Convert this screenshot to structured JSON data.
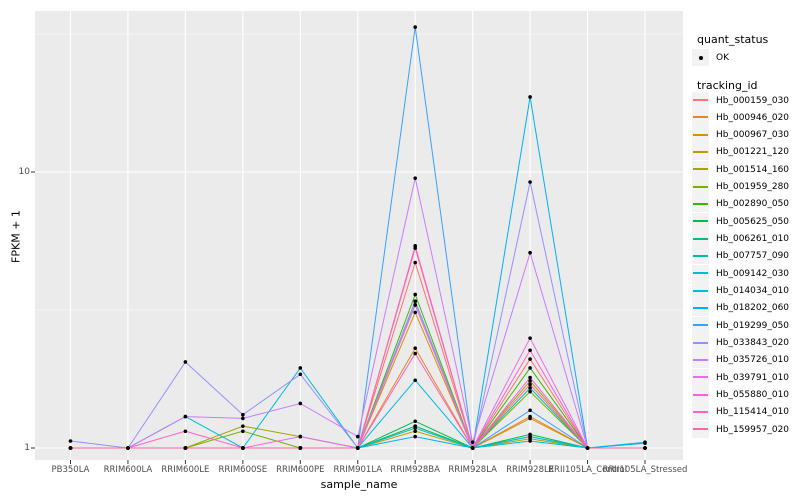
{
  "chart_data": {
    "type": "line",
    "xlabel": "sample_name",
    "ylabel": "FPKM + 1",
    "y_scale": "log10",
    "y_ticks": [
      1,
      10
    ],
    "y_minor": [
      3.162,
      31.62
    ],
    "ylim": [
      0.9,
      38
    ],
    "grid": true,
    "panel_bg": "#EBEBEB",
    "grid_color": "#FFFFFF",
    "point_color": "#000000",
    "categories": [
      "PB350LA",
      "RRIM600LA",
      "RRIM600LE",
      "RRIM600SE",
      "RRIM600PE",
      "RRIM901LA",
      "RRIM928BA",
      "RRIM928LA",
      "RRIM928LE",
      "RRII105LA_Control",
      "RRII105LA_Stressed"
    ],
    "series": [
      {
        "name": "Hb_000159_030",
        "color": "#F8766D",
        "values": [
          1,
          1,
          1,
          1,
          1,
          1,
          4.7,
          1,
          2.1,
          1,
          1
        ]
      },
      {
        "name": "Hb_000946_020",
        "color": "#E88526",
        "values": [
          1,
          1,
          1,
          1,
          1,
          1,
          2.3,
          1,
          1.3,
          1,
          1
        ]
      },
      {
        "name": "Hb_000967_030",
        "color": "#D89000",
        "values": [
          1,
          1,
          1,
          1,
          1,
          1,
          3.1,
          1,
          1.28,
          1,
          1
        ]
      },
      {
        "name": "Hb_001221_120",
        "color": "#C09B00",
        "values": [
          1,
          1,
          1,
          1,
          1,
          1,
          1.15,
          1,
          1.08,
          1,
          1
        ]
      },
      {
        "name": "Hb_001514_160",
        "color": "#A3A500",
        "values": [
          1,
          1,
          1,
          1.2,
          1.1,
          1,
          3.3,
          1,
          1.75,
          1,
          1
        ]
      },
      {
        "name": "Hb_001959_280",
        "color": "#7CAE00",
        "values": [
          1,
          1,
          1,
          1.15,
          1,
          1,
          1.2,
          1,
          1.6,
          1,
          1
        ]
      },
      {
        "name": "Hb_002890_050",
        "color": "#39B600",
        "values": [
          1,
          1,
          1,
          1,
          1,
          1,
          3.6,
          1,
          1.95,
          1,
          1
        ]
      },
      {
        "name": "Hb_005625_050",
        "color": "#00BB4E",
        "values": [
          1,
          1,
          1,
          1,
          1,
          1,
          1.25,
          1,
          1.12,
          1,
          1
        ]
      },
      {
        "name": "Hb_006261_010",
        "color": "#00BF7D",
        "values": [
          1,
          1,
          1,
          1,
          1,
          1,
          1.2,
          1,
          1.1,
          1,
          1
        ]
      },
      {
        "name": "Hb_007757_090",
        "color": "#00C1A3",
        "values": [
          1,
          1,
          1,
          1,
          1,
          1,
          3.4,
          1,
          1.65,
          1,
          1
        ]
      },
      {
        "name": "Hb_009142_030",
        "color": "#00BFC4",
        "values": [
          1,
          1,
          1,
          1,
          1,
          1,
          1.18,
          1,
          1.06,
          1,
          1
        ]
      },
      {
        "name": "Hb_014034_010",
        "color": "#00BAE0",
        "values": [
          1,
          1,
          1.3,
          1,
          1.95,
          1,
          1.76,
          1,
          1.1,
          1,
          1.05
        ]
      },
      {
        "name": "Hb_018202_060",
        "color": "#00B0F6",
        "values": [
          1,
          1,
          1,
          1,
          1,
          1,
          1.1,
          1,
          18.7,
          1,
          1.04
        ]
      },
      {
        "name": "Hb_019299_050",
        "color": "#35A2FF",
        "values": [
          1,
          1,
          1,
          1,
          1,
          1,
          33.5,
          1,
          1.37,
          1,
          1
        ]
      },
      {
        "name": "Hb_033843_020",
        "color": "#9590FF",
        "values": [
          1.06,
          1,
          2.05,
          1.32,
          1.85,
          1,
          3.4,
          1,
          9.2,
          1,
          1
        ]
      },
      {
        "name": "Hb_035726_010",
        "color": "#C77CFF",
        "values": [
          1,
          1,
          1.3,
          1.28,
          1.45,
          1.1,
          9.5,
          1.05,
          5.1,
          1,
          1
        ]
      },
      {
        "name": "Hb_039791_010",
        "color": "#E76BF3",
        "values": [
          1,
          1,
          1,
          1,
          1.1,
          1,
          3.3,
          1,
          2.5,
          1,
          1
        ]
      },
      {
        "name": "Hb_055880_010",
        "color": "#FA62DB",
        "values": [
          1,
          1,
          1,
          1,
          1,
          1,
          5.4,
          1,
          1.8,
          1,
          1
        ]
      },
      {
        "name": "Hb_115414_010",
        "color": "#FF61C3",
        "values": [
          1,
          1,
          1.15,
          1,
          1,
          1,
          2.2,
          1,
          2.26,
          1,
          1
        ]
      },
      {
        "name": "Hb_159957_020",
        "color": "#FF67A4",
        "values": [
          1,
          1,
          1,
          1,
          1,
          1,
          5.3,
          1,
          1.7,
          1,
          1
        ]
      }
    ],
    "legend": {
      "position": "right",
      "quant_title": "quant_status",
      "quant_items": [
        {
          "label": "OK",
          "shape": "point"
        }
      ],
      "tracking_title": "tracking_id"
    }
  }
}
